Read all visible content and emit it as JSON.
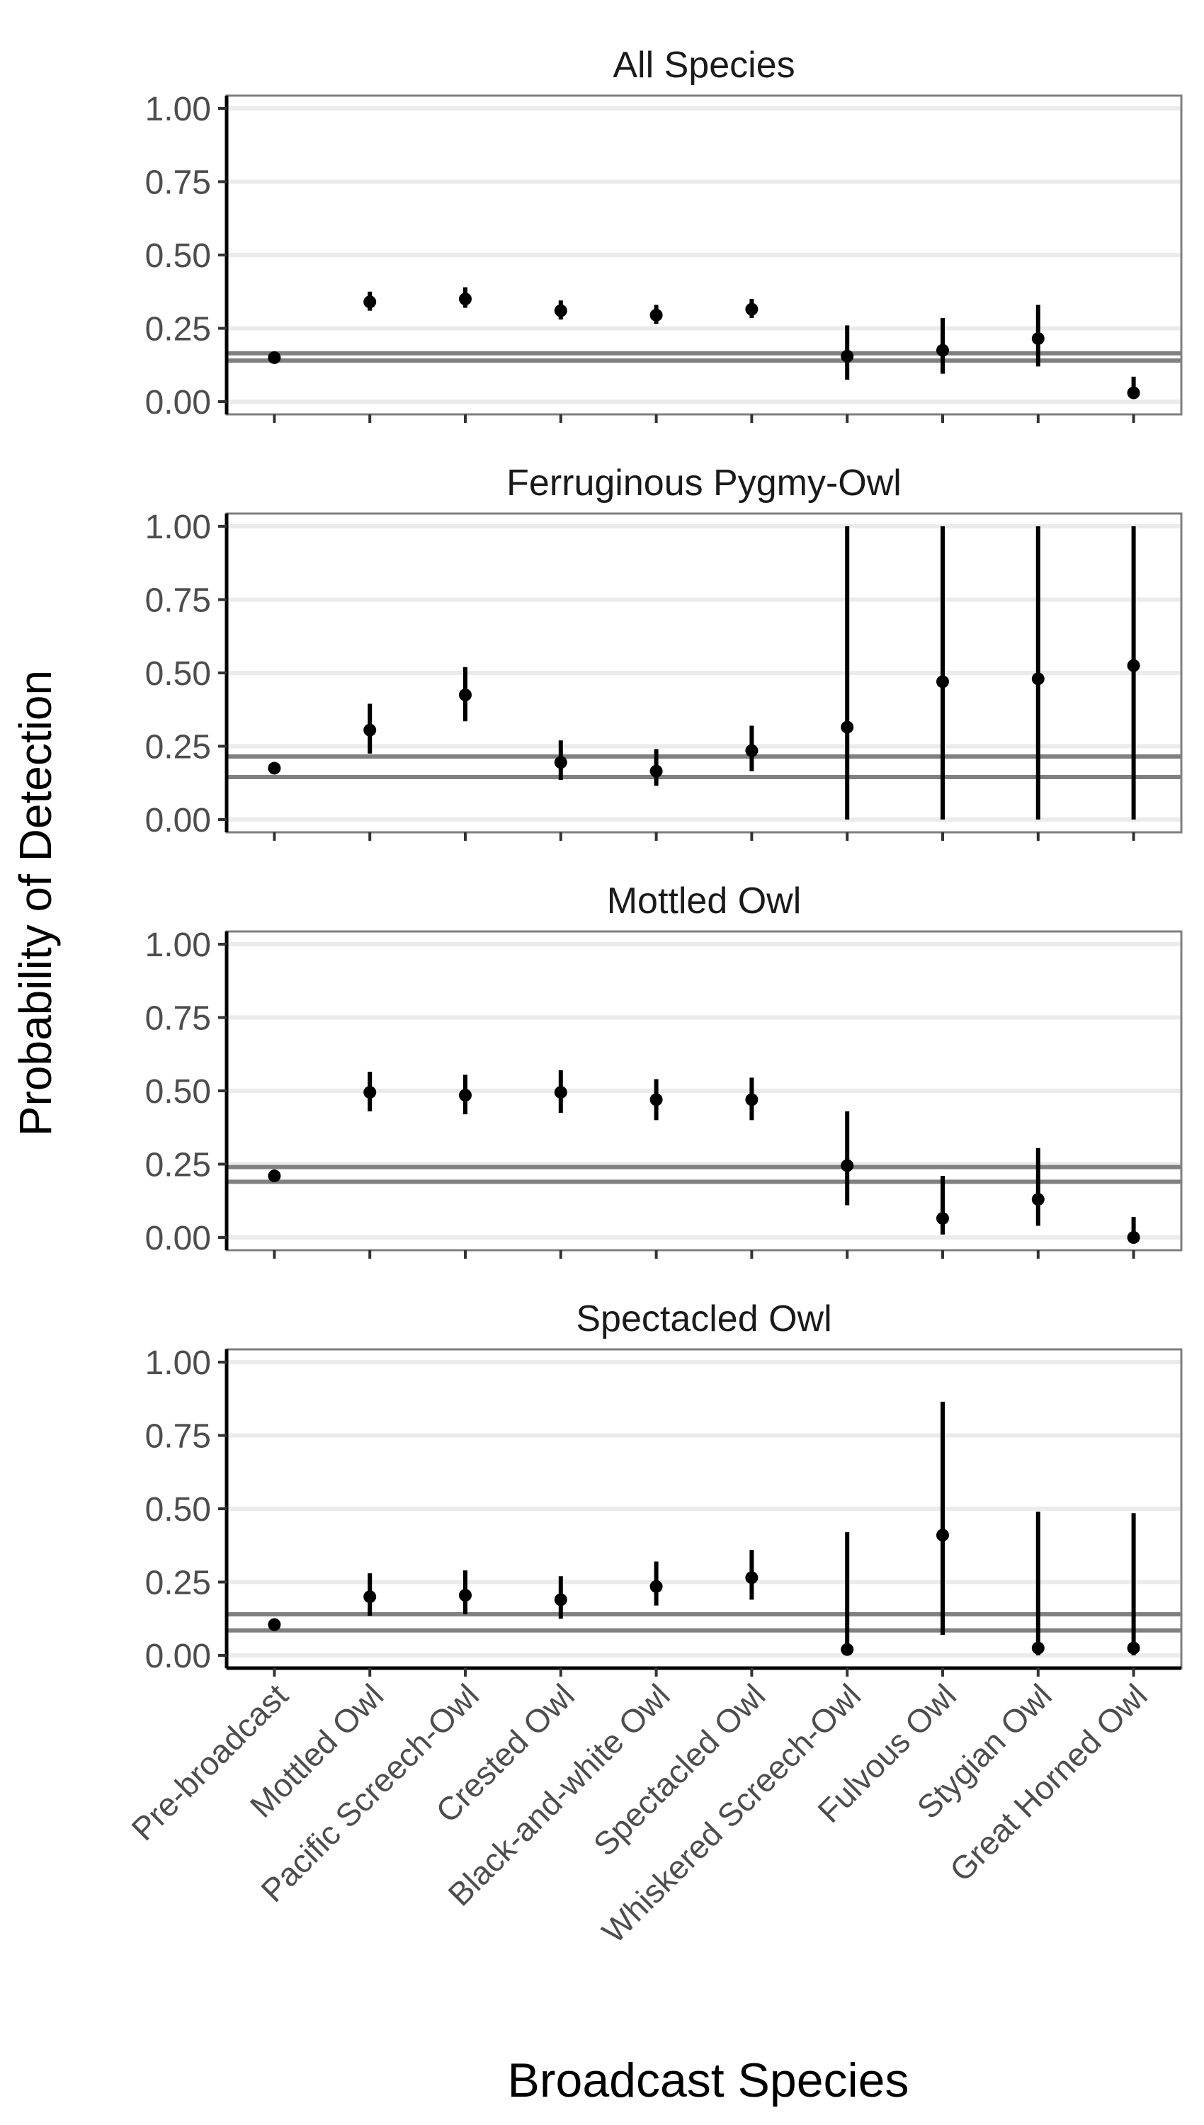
{
  "chart_data": {
    "type": "scatter",
    "ylabel": "Probability of Detection",
    "xlabel": "Broadcast Species",
    "categories": [
      "Pre-broadcast",
      "Mottled Owl",
      "Pacific Screech-Owl",
      "Crested Owl",
      "Black-and-white Owl",
      "Spectacled Owl",
      "Whiskered Screech-Owl",
      "Fulvous Owl",
      "Stygian Owl",
      "Great Horned Owl"
    ],
    "ylim": [
      0,
      1
    ],
    "yticks": [
      "0.00",
      "0.25",
      "0.50",
      "0.75",
      "1.00"
    ],
    "y_tick_values": [
      0,
      0.25,
      0.5,
      0.75,
      1
    ],
    "grid": "horizontal",
    "panels": [
      {
        "title": "All Species",
        "estimate": [
          0.15,
          0.34,
          0.35,
          0.31,
          0.295,
          0.315,
          0.155,
          0.175,
          0.215,
          0.03
        ],
        "lower": [
          0.15,
          0.31,
          0.32,
          0.28,
          0.265,
          0.285,
          0.075,
          0.095,
          0.12,
          0.01
        ],
        "upper": [
          0.15,
          0.375,
          0.39,
          0.345,
          0.33,
          0.35,
          0.26,
          0.285,
          0.33,
          0.085
        ],
        "ref_lines": [
          0.14,
          0.165
        ]
      },
      {
        "title": "Ferruginous Pygmy-Owl",
        "estimate": [
          0.175,
          0.305,
          0.425,
          0.195,
          0.165,
          0.235,
          0.315,
          0.47,
          0.48,
          0.525
        ],
        "lower": [
          0.155,
          0.225,
          0.335,
          0.135,
          0.115,
          0.165,
          0.0,
          0.0,
          0.0,
          0.0
        ],
        "upper": [
          0.195,
          0.395,
          0.52,
          0.27,
          0.24,
          0.32,
          1.0,
          1.0,
          1.0,
          1.0
        ],
        "ref_lines": [
          0.145,
          0.215
        ]
      },
      {
        "title": "Mottled Owl",
        "estimate": [
          0.21,
          0.495,
          0.485,
          0.495,
          0.47,
          0.47,
          0.245,
          0.065,
          0.13,
          0.0
        ],
        "lower": [
          0.2,
          0.43,
          0.42,
          0.425,
          0.4,
          0.4,
          0.11,
          0.01,
          0.04,
          0.0
        ],
        "upper": [
          0.22,
          0.565,
          0.555,
          0.57,
          0.54,
          0.545,
          0.43,
          0.21,
          0.305,
          0.07
        ],
        "ref_lines": [
          0.19,
          0.24
        ]
      },
      {
        "title": "Spectacled Owl",
        "estimate": [
          0.105,
          0.2,
          0.205,
          0.19,
          0.235,
          0.265,
          0.02,
          0.41,
          0.025,
          0.025
        ],
        "lower": [
          0.095,
          0.135,
          0.14,
          0.125,
          0.17,
          0.19,
          0.0,
          0.07,
          0.0,
          0.0
        ],
        "upper": [
          0.12,
          0.28,
          0.29,
          0.27,
          0.32,
          0.36,
          0.42,
          0.865,
          0.49,
          0.485
        ],
        "ref_lines": [
          0.085,
          0.14
        ]
      }
    ]
  }
}
